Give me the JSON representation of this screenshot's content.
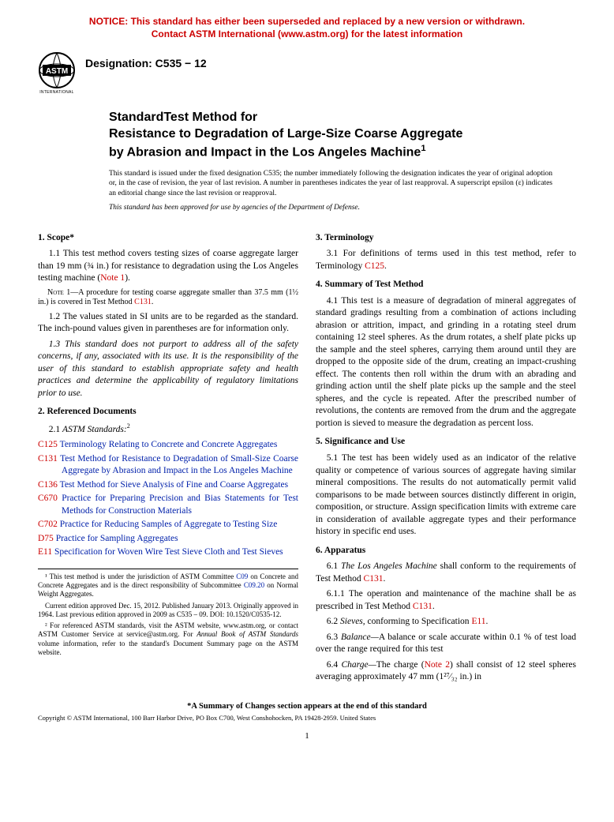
{
  "notice": {
    "line1": "NOTICE: This standard has either been superseded and replaced by a new version or withdrawn.",
    "line2": "Contact ASTM International (www.astm.org) for the latest information"
  },
  "logo_label": "INTERNATIONAL",
  "designation": "Designation: C535 − 12",
  "title": {
    "line1": "StandardTest Method for",
    "line2": "Resistance to Degradation of Large-Size Coarse Aggregate",
    "line3": "by Abrasion and Impact in the Los Angeles Machine"
  },
  "issued_note": "This standard is issued under the fixed designation C535; the number immediately following the designation indicates the year of original adoption or, in the case of revision, the year of last revision. A number in parentheses indicates the year of last reapproval. A superscript epsilon (ε) indicates an editorial change since the last revision or reapproval.",
  "dod": "This standard has been approved for use by agencies of the Department of Defense.",
  "sections": {
    "scope_head": "1. Scope*",
    "scope_1_1a": "1.1 This test method covers testing sizes of coarse aggregate larger than 19 mm (¾  in.) for resistance to degradation using the Los Angeles testing machine (",
    "scope_1_1_note_ref": "Note 1",
    "scope_1_1b": ").",
    "note1_label": "Note",
    "note1_a": " 1—A procedure for testing coarse aggregate smaller than 37.5 mm (1½ in.) is covered in Test Method ",
    "note1_ref": "C131",
    "note1_b": ".",
    "scope_1_2": "1.2 The values stated in SI units are to be regarded as the standard. The inch-pound values given in parentheses are for information only.",
    "scope_1_3": "1.3 This standard does not purport to address all of the safety concerns, if any, associated with its use. It is the responsibility of the user of this standard to establish appropriate safety and health practices and determine the applicability of regulatory limitations prior to use.",
    "refdoc_head": "2. Referenced Documents",
    "refdoc_2_1_a": "2.1 ",
    "refdoc_2_1_b": "ASTM Standards:",
    "refs": [
      {
        "code": "C125",
        "title": "Terminology Relating to Concrete and Concrete Aggregates"
      },
      {
        "code": "C131",
        "title": "Test Method for Resistance to Degradation of Small-Size Coarse Aggregate by Abrasion and Impact in the Los Angeles Machine"
      },
      {
        "code": "C136",
        "title": "Test Method for Sieve Analysis of Fine and Coarse Aggregates"
      },
      {
        "code": "C670",
        "title": "Practice for Preparing Precision and Bias Statements for Test Methods for Construction Materials"
      },
      {
        "code": "C702",
        "title": "Practice for Reducing Samples of Aggregate to Testing Size"
      },
      {
        "code": "D75",
        "title": "Practice for Sampling Aggregates"
      },
      {
        "code": "E11",
        "title": "Specification for Woven Wire Test Sieve Cloth and Test Sieves"
      }
    ],
    "term_head": "3. Terminology",
    "term_3_1_a": "3.1 For definitions of terms used in this test method, refer to Terminology ",
    "term_3_1_ref": "C125",
    "term_3_1_b": ".",
    "summary_head": "4. Summary of Test Method",
    "summary_4_1": "4.1 This test is a measure of degradation of mineral aggregates of standard gradings resulting from a combination of actions including abrasion or attrition, impact, and grinding in a rotating steel drum containing 12 steel spheres. As the drum rotates, a shelf plate picks up the sample and the steel spheres, carrying them around until they are dropped to the opposite side of the drum, creating an impact-crushing effect. The contents then roll within the drum with an abrading and grinding action until the shelf plate picks up the sample and the steel spheres, and the cycle is repeated. After the prescribed number of revolutions, the contents are removed from the drum and the aggregate portion is sieved to measure the degradation as percent loss.",
    "sig_head": "5. Significance and Use",
    "sig_5_1": "5.1 The test has been widely used as an indicator of the relative quality or competence of various sources of aggregate having similar mineral compositions. The results do not automatically permit valid comparisons to be made between sources distinctly different in origin, composition, or structure. Assign specification limits with extreme care in consideration of available aggregate types and their performance history in specific end uses.",
    "app_head": "6. Apparatus",
    "app_6_1_a": "6.1 ",
    "app_6_1_b": "The Los Angeles Machine",
    "app_6_1_c": " shall conform to the requirements of Test Method ",
    "app_6_1_ref": "C131",
    "app_6_1_d": ".",
    "app_6_1_1_a": "6.1.1 The operation and maintenance of the machine shall be as prescribed in Test Method ",
    "app_6_1_1_ref": "C131",
    "app_6_1_1_b": ".",
    "app_6_2_a": "6.2 ",
    "app_6_2_b": "Sieves,",
    "app_6_2_c": " conforming to Specification ",
    "app_6_2_ref": "E11",
    "app_6_2_d": ".",
    "app_6_3_a": "6.3 ",
    "app_6_3_b": "Balance—",
    "app_6_3_c": "A balance or scale accurate within 0.1 % of test load over the range required for this test",
    "app_6_4_a": "6.4 ",
    "app_6_4_b": "Charge—",
    "app_6_4_c": "The charge (",
    "app_6_4_ref": "Note 2",
    "app_6_4_d": ") shall consist of 12 steel spheres averaging approximately 47 mm (1²⁷⁄₃₂ in.) in"
  },
  "footnotes": {
    "fn1_a": "¹ This test method is under the jurisdiction of ASTM Committee ",
    "fn1_ref1": "C09",
    "fn1_b": " on Concrete and Concrete Aggregates and is the direct responsibility of Subcommittee ",
    "fn1_ref2": "C09.20",
    "fn1_c": "  on Normal Weight Aggregates.",
    "fn1_d": "Current edition approved Dec. 15, 2012. Published January 2013. Originally approved in 1964. Last previous edition approved in 2009 as C535 – 09. DOI: 10.1520/C0535-12.",
    "fn2_a": "² For referenced ASTM standards, visit the ASTM website, www.astm.org, or contact ASTM Customer Service at service@astm.org. For ",
    "fn2_b": "Annual Book of ASTM Standards",
    "fn2_c": " volume information, refer to the standard's Document Summary page on the ASTM website."
  },
  "summary_changes": "*A Summary of Changes section appears at the end of this standard",
  "copyright": "Copyright © ASTM International, 100 Barr Harbor Drive, PO Box C700, West Conshohocken, PA 19428-2959. United States",
  "page_number": "1",
  "colors": {
    "notice_red": "#cc0000",
    "link_red": "#cc0000",
    "link_blue": "#0020aa",
    "text": "#000000",
    "background": "#ffffff"
  }
}
